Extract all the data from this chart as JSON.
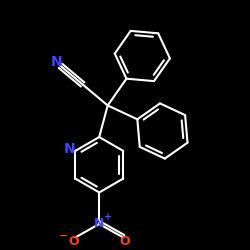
{
  "bg": "#000000",
  "bond_color": "#ffffff",
  "N_color": "#4444ff",
  "O_color": "#ff4400",
  "lw": 1.5,
  "xlim": [
    -3.0,
    3.5
  ],
  "ylim": [
    -3.2,
    3.2
  ],
  "ring_r": 0.72,
  "dbo": 0.1,
  "fs": 10
}
